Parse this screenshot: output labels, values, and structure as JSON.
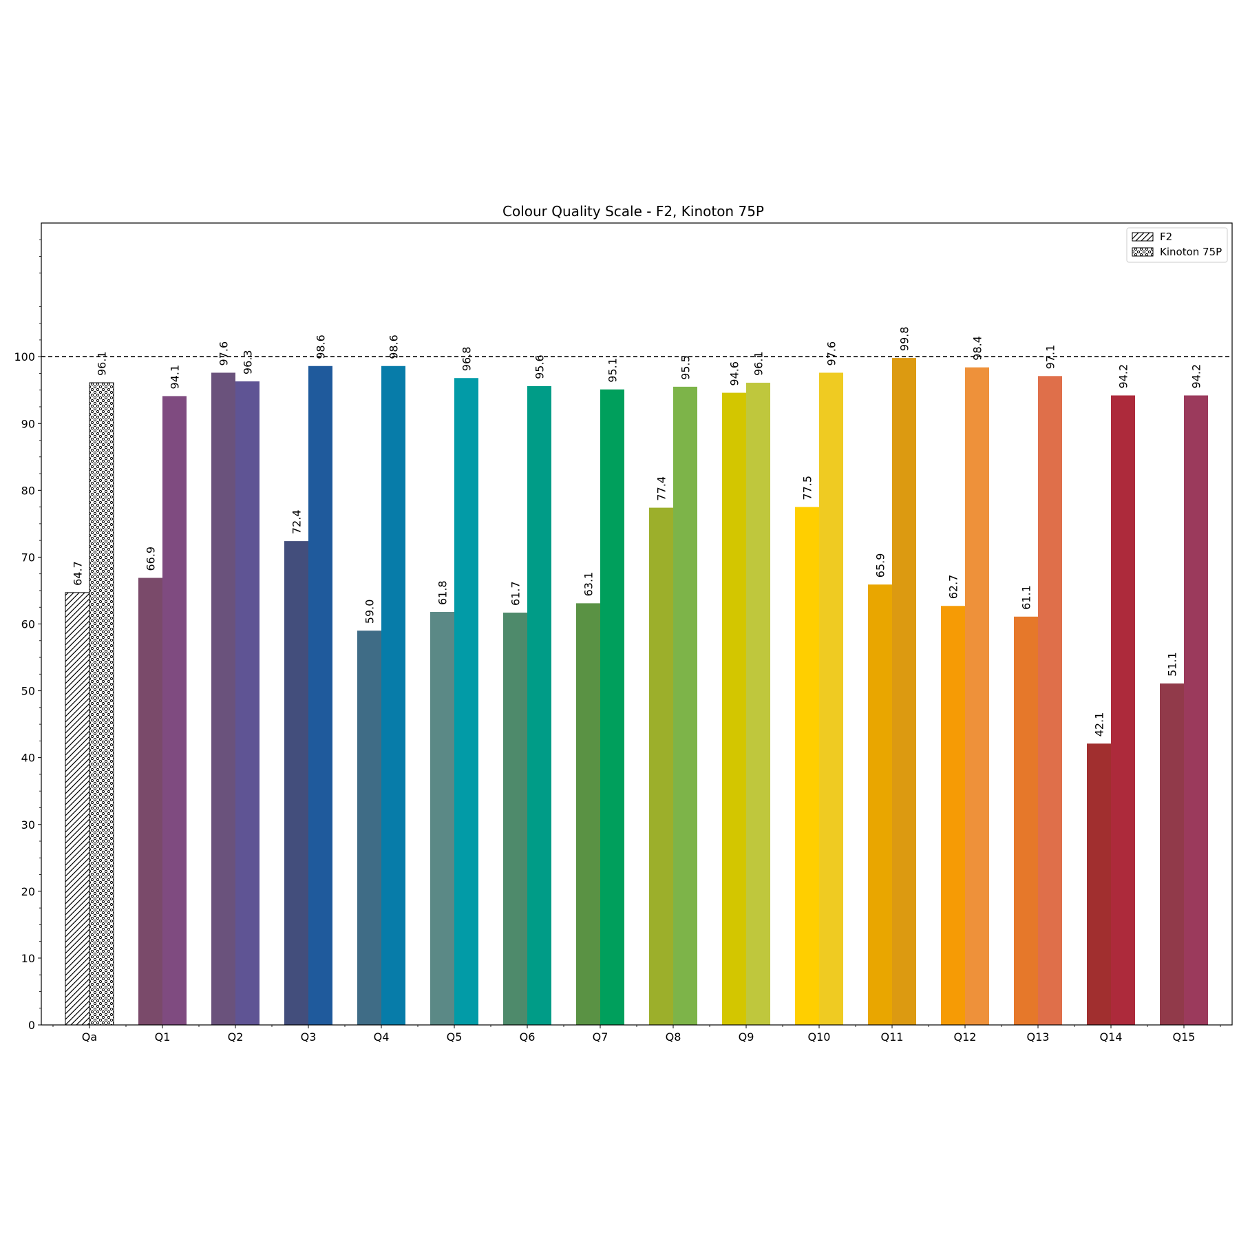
{
  "chart_data": {
    "type": "bar",
    "title": "Colour Quality Scale - F2, Kinoton 75P",
    "xlabel": "",
    "ylabel": "",
    "ylim": [
      0,
      120
    ],
    "yticks": [
      0,
      10,
      20,
      30,
      40,
      50,
      60,
      70,
      80,
      90,
      100
    ],
    "reference_line": 100,
    "categories": [
      "Qa",
      "Q1",
      "Q2",
      "Q3",
      "Q4",
      "Q5",
      "Q6",
      "Q7",
      "Q8",
      "Q9",
      "Q10",
      "Q11",
      "Q12",
      "Q13",
      "Q14",
      "Q15"
    ],
    "series": [
      {
        "name": "F2",
        "values": [
          64.7,
          66.9,
          97.6,
          72.4,
          59.0,
          61.8,
          61.7,
          63.1,
          77.4,
          94.6,
          77.5,
          65.9,
          62.7,
          61.1,
          42.1,
          51.1
        ],
        "labels": [
          "64.7",
          "66.9",
          "97.6",
          "72.4",
          "59.0",
          "61.8",
          "61.7",
          "63.1",
          "77.4",
          "94.6",
          "77.5",
          "65.9",
          "62.7",
          "61.1",
          "42.1",
          "51.1"
        ],
        "colors": [
          "#ffffff",
          "#7a4a6a",
          "#6a527c",
          "#434e7c",
          "#3f6c86",
          "#5b8986",
          "#4e8a6b",
          "#5a9244",
          "#9caf2b",
          "#d3c600",
          "#ffcf00",
          "#e9a600",
          "#f69b05",
          "#e6782a",
          "#a12f2f",
          "#913a4a"
        ],
        "hatch": "diagonal"
      },
      {
        "name": "Kinoton 75P",
        "values": [
          96.1,
          94.1,
          96.3,
          98.6,
          98.6,
          96.8,
          95.6,
          95.1,
          95.5,
          96.1,
          97.6,
          99.8,
          98.4,
          97.1,
          94.2,
          94.2
        ],
        "labels": [
          "96.1",
          "94.1",
          "96.3",
          "98.6",
          "98.6",
          "96.8",
          "95.6",
          "95.1",
          "95.5",
          "96.1",
          "97.6",
          "99.8",
          "98.4",
          "97.1",
          "94.2",
          "94.2"
        ],
        "colors": [
          "#ffffff",
          "#7f4b80",
          "#5f5494",
          "#1f5a9c",
          "#077ca9",
          "#029ba7",
          "#009c87",
          "#009f5c",
          "#7db449",
          "#bfc73d",
          "#efcb22",
          "#dc9a11",
          "#ee913a",
          "#df6f4a",
          "#ad2a3b",
          "#9b3a5c"
        ],
        "hatch": "dots"
      }
    ],
    "legend": {
      "position": "top-right",
      "entries": [
        "F2",
        "Kinoton 75P"
      ]
    }
  }
}
